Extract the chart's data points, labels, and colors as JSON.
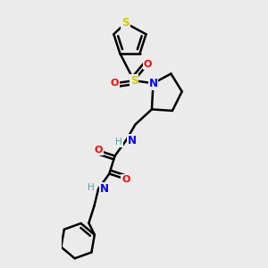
{
  "bg_color": "#ebebeb",
  "atom_colors": {
    "C": "#000000",
    "N": "#0000ff",
    "O": "#ff0000",
    "S_thio": "#cccc00",
    "S_sulfonyl": "#cccc00",
    "H": "#5f9ea0"
  },
  "bond_color": "#000000",
  "bond_width": 1.8,
  "fig_bg": "#ebebeb"
}
